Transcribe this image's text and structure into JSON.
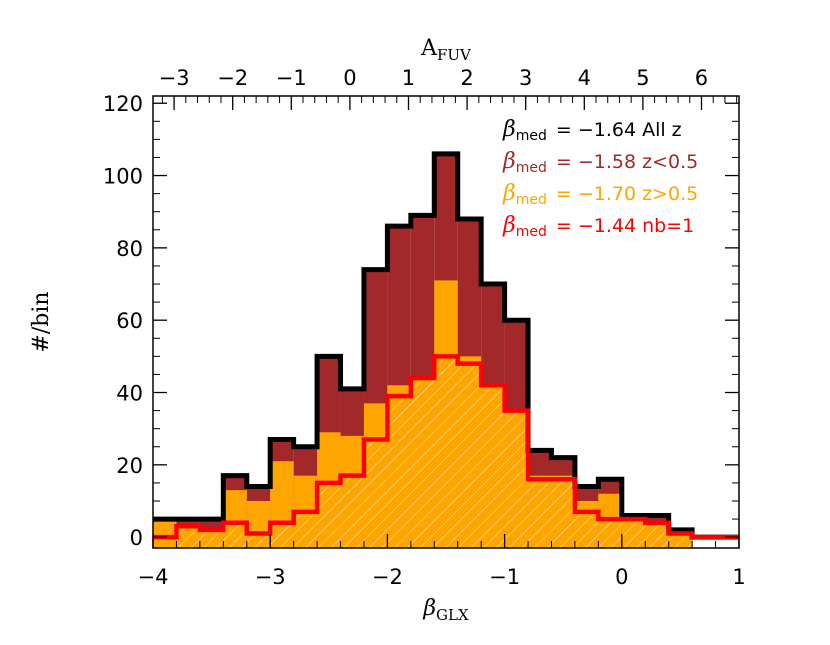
{
  "chart_data": {
    "type": "histogram",
    "title": "",
    "xlabel": "β",
    "xlabel_sub": "GLX",
    "ylabel": "#/bin",
    "top_xlabel": "A",
    "top_xlabel_sub": "FUV",
    "xlim": [
      -4,
      1
    ],
    "ylim": [
      -3,
      122
    ],
    "x_ticks": [
      -4,
      -3,
      -2,
      -1,
      0,
      1
    ],
    "x_tick_labels": [
      "−4",
      "−3",
      "−2",
      "−1",
      "0",
      "1"
    ],
    "y_ticks": [
      0,
      20,
      40,
      60,
      80,
      100,
      120
    ],
    "y_tick_labels": [
      "0",
      "20",
      "40",
      "60",
      "80",
      "100",
      "120"
    ],
    "top_ticks": [
      -3,
      -2,
      -1,
      0,
      1,
      2,
      3,
      4,
      5,
      6
    ],
    "top_tick_labels": [
      "−3",
      "−2",
      "−1",
      "0",
      "1",
      "2",
      "3",
      "4",
      "5",
      "6"
    ],
    "top_tick_beta": [
      -3.82,
      -3.32,
      -2.82,
      -2.32,
      -1.82,
      -1.32,
      -0.82,
      -0.32,
      0.18,
      0.68
    ],
    "bin_edges": [
      -4.0,
      -3.8,
      -3.6,
      -3.4,
      -3.2,
      -3.0,
      -2.8,
      -2.6,
      -2.4,
      -2.2,
      -2.0,
      -1.8,
      -1.6,
      -1.4,
      -1.2,
      -1.0,
      -0.8,
      -0.6,
      -0.4,
      -0.2,
      0.0,
      0.2,
      0.4,
      0.6,
      0.8,
      1.0
    ],
    "series": [
      {
        "name": "All z",
        "style": "step-outline",
        "color": "#000000",
        "values": [
          5,
          5,
          5,
          17,
          14,
          27,
          25,
          50,
          41,
          74,
          86,
          89,
          106,
          88,
          70,
          60,
          24,
          22,
          14,
          16,
          6,
          6,
          2,
          0,
          0
        ]
      },
      {
        "name": "z<0.5",
        "style": "filled",
        "color": "#a3282a",
        "values": [
          5,
          5,
          5,
          17,
          14,
          27,
          25,
          50,
          41,
          74,
          86,
          89,
          106,
          88,
          70,
          60,
          24,
          22,
          14,
          16,
          6,
          6,
          2,
          0,
          0
        ]
      },
      {
        "name": "z>0.5",
        "style": "filled",
        "color": "#ffa500",
        "values": [
          5,
          2,
          2,
          13,
          10,
          21,
          17,
          29,
          28,
          37,
          42,
          43,
          71,
          50,
          40,
          33,
          17,
          17,
          10,
          12,
          4,
          4,
          1,
          0,
          0
        ]
      },
      {
        "name": "nb=1",
        "style": "hatched-step",
        "color": "#ff0000",
        "values": [
          0,
          3,
          2,
          4,
          1,
          4,
          7,
          15,
          17,
          27,
          39,
          44,
          50,
          48,
          42,
          35,
          16,
          16,
          7,
          5,
          5,
          4,
          1,
          0,
          0
        ]
      }
    ],
    "legend": {
      "placement": "top-right",
      "entries": [
        {
          "symbol": "β",
          "sub": "med",
          "text": "= −1.64 All z",
          "color": "#000000"
        },
        {
          "symbol": "β",
          "sub": "med",
          "text": "= −1.58 z<0.5",
          "color": "#a3282a"
        },
        {
          "symbol": "β",
          "sub": "med",
          "text": "= −1.70 z>0.5",
          "color": "#ffa500"
        },
        {
          "symbol": "β",
          "sub": "med",
          "text": "= −1.44 nb=1",
          "color": "#ff0000"
        }
      ]
    }
  }
}
